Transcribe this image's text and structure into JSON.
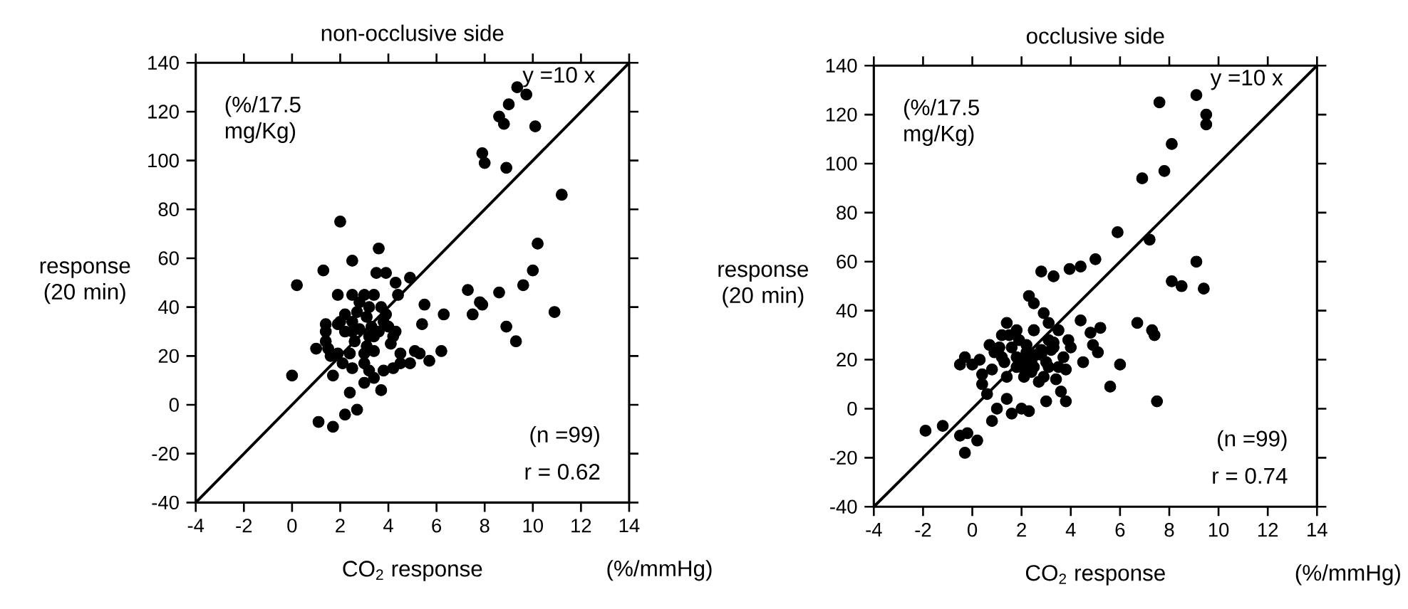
{
  "chart_data": [
    {
      "type": "scatter",
      "title": "non-occlusive side",
      "xlabel": "CO$_{2}$ response",
      "ylabel": "response (20 min)",
      "annotations": [
        "(%/17.5 mg/Kg)",
        "(n =99)",
        "r = 0.62",
        "(%/mmHg)"
      ],
      "xlim": [
        -4,
        14
      ],
      "ylim": [
        -40,
        140
      ],
      "xticks": [
        -4,
        -2,
        0,
        2,
        4,
        6,
        8,
        10,
        12,
        14
      ],
      "yticks": [
        -40,
        -20,
        0,
        20,
        40,
        60,
        80,
        100,
        120,
        140
      ],
      "series": [
        {
          "type": "scatter",
          "color": "#000000",
          "marker": "circle",
          "x": [
            9.35,
            9.73,
            9.0,
            8.6,
            8.8,
            10.1,
            7.9,
            8.0,
            8.9,
            11.2,
            10.2,
            10.0,
            9.6,
            10.9,
            8.6,
            8.9,
            9.3,
            7.3,
            7.8,
            7.9,
            7.5,
            6.3,
            5.5,
            5.4,
            6.2,
            5.7,
            5.1,
            4.9,
            4.5,
            4.9,
            4.3,
            4.4,
            2.0,
            3.6,
            2.5,
            1.3,
            3.5,
            3.9,
            0.2,
            1.9,
            2.5,
            3.0,
            3.4,
            1.4,
            1.4,
            1.9,
            2.5,
            3.1,
            3.3,
            3.6,
            3.9,
            3.8,
            4.2,
            4.1,
            2.5,
            3.2,
            1.0,
            1.5,
            1.9,
            2.4,
            3.0,
            3.0,
            3.2,
            3.8,
            4.2,
            1.7,
            0.0,
            3.0,
            3.7,
            2.4,
            2.2,
            2.7,
            1.1,
            1.7,
            2.1,
            2.6,
            2.2,
            3.4,
            3.4,
            1.6,
            2.2,
            2.7,
            3.7,
            4.0,
            4.3,
            2.8,
            3.1,
            1.4,
            2.5,
            3.4,
            2.8,
            5.3,
            4.5,
            2.0,
            3.2
          ],
          "values": [
            130,
            127,
            123,
            118,
            115,
            114,
            103,
            99,
            97,
            86,
            66,
            55,
            49,
            38,
            46,
            32,
            26,
            47,
            42,
            41,
            37,
            37,
            41,
            33,
            22,
            18,
            22,
            17,
            21,
            52,
            50,
            45,
            75,
            64,
            59,
            55,
            54,
            54,
            49,
            45,
            45,
            45,
            45,
            33,
            30,
            33,
            34,
            36,
            32,
            30,
            37,
            34,
            28,
            25,
            30,
            40,
            23,
            23,
            21,
            21,
            21,
            17,
            14,
            14,
            15,
            12,
            12,
            9,
            6,
            5,
            -4,
            -2,
            -7,
            -9,
            17,
            26,
            30,
            28,
            22,
            20,
            37,
            38,
            40,
            32,
            30,
            31,
            24,
            26,
            15,
            11,
            42,
            21,
            17,
            34,
            28
          ]
        },
        {
          "type": "line",
          "color": "#000000",
          "marker": "none",
          "name": "y =10 x",
          "x": [
            -4,
            14
          ],
          "values": [
            -40,
            140
          ]
        }
      ]
    },
    {
      "type": "scatter",
      "title": "occlusive side",
      "xlabel": "CO$_{2}$ response",
      "ylabel": "response (20 min)",
      "annotations": [
        "(%/17.5 mg/Kg)",
        "(n =99)",
        "r = 0.74",
        "(%/mmHg)"
      ],
      "xlim": [
        -4,
        14
      ],
      "ylim": [
        -40,
        140
      ],
      "xticks": [
        -4,
        -2,
        0,
        2,
        4,
        6,
        8,
        10,
        12,
        14
      ],
      "yticks": [
        -40,
        -20,
        0,
        20,
        40,
        60,
        80,
        100,
        120,
        140
      ],
      "series": [
        {
          "type": "scatter",
          "color": "#000000",
          "marker": "circle",
          "x": [
            9.1,
            7.6,
            9.5,
            9.5,
            8.1,
            6.9,
            7.8,
            5.9,
            7.2,
            9.1,
            9.4,
            8.1,
            8.5,
            6.7,
            7.3,
            7.4,
            7.5,
            6.0,
            5.6,
            5.0,
            4.4,
            3.95,
            2.8,
            3.3,
            2.3,
            2.5,
            2.9,
            4.4,
            4.8,
            5.2,
            4.9,
            5.1,
            4.5,
            3.9,
            3.5,
            3.1,
            2.5,
            1.4,
            1.8,
            1.2,
            0.7,
            1.1,
            0.3,
            0.0,
            -0.5,
            -0.3,
            0.4,
            0.8,
            1.4,
            2.0,
            2.2,
            2.4,
            2.8,
            3.1,
            3.3,
            3.7,
            3.8,
            3.4,
            3.6,
            3.8,
            3.0,
            2.3,
            2.0,
            1.6,
            1.4,
            1.0,
            0.8,
            0.6,
            0.4,
            -1.9,
            -1.2,
            -0.5,
            -0.2,
            0.2,
            -0.3,
            1.8,
            2.1,
            2.4,
            2.7,
            2.8,
            3.1,
            2.2,
            1.6,
            1.3,
            0.9,
            4.0,
            2.5,
            1.9,
            2.5,
            2.9,
            3.5,
            1.8,
            2.2,
            3.0,
            1.5,
            3.3,
            2.6,
            1.2,
            3.2
          ],
          "values": [
            128,
            125,
            120,
            116,
            108,
            94,
            97,
            72,
            69,
            60,
            49,
            52,
            50,
            35,
            32,
            30,
            3,
            18,
            9,
            61,
            58,
            57,
            56,
            54,
            46,
            43,
            39,
            36,
            31,
            33,
            26,
            23,
            19,
            28,
            32,
            35,
            32,
            35,
            32,
            30,
            26,
            25,
            20,
            18,
            18,
            21,
            14,
            16,
            13,
            17,
            23,
            19,
            22,
            17,
            25,
            21,
            16,
            12,
            7,
            3,
            3,
            -1,
            0,
            -2,
            4,
            0,
            -5,
            6,
            10,
            -9,
            -7,
            -11,
            -10,
            -13,
            -18,
            21,
            13,
            15,
            11,
            24,
            28,
            26,
            25,
            19,
            23,
            25,
            32,
            28,
            17,
            13,
            17,
            17,
            19,
            19,
            30,
            27,
            22,
            21,
            24
          ]
        },
        {
          "type": "line",
          "color": "#000000",
          "marker": "none",
          "name": "y =10 x",
          "x": [
            -4,
            14
          ],
          "values": [
            -40,
            140
          ]
        }
      ]
    }
  ]
}
